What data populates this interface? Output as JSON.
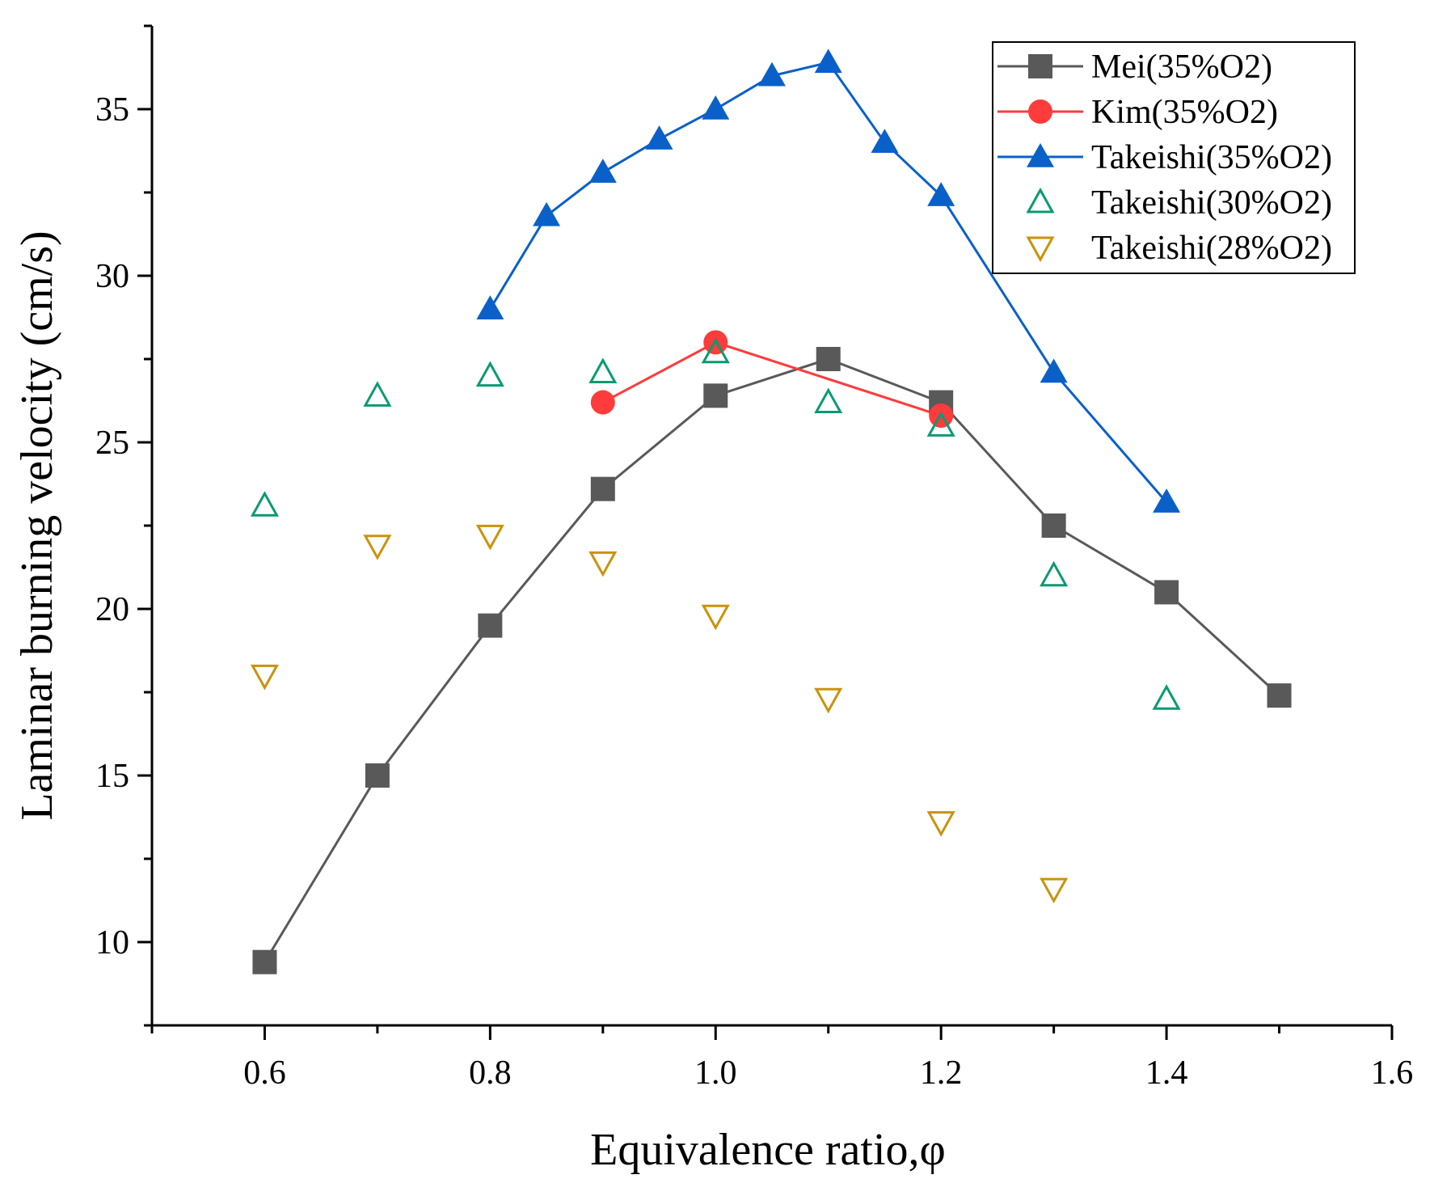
{
  "chart_data": {
    "type": "line",
    "xlabel": "Equivalence ratio,φ",
    "ylabel": "Laminar burning velocity (cm/s)",
    "xlim": [
      0.5,
      1.6
    ],
    "ylim": [
      7.5,
      37.5
    ],
    "xticks": [
      0.6,
      0.8,
      1.0,
      1.2,
      1.4,
      1.6
    ],
    "xtick_labels": [
      "0.6",
      "0.8",
      "1.0",
      "1.2",
      "1.4",
      "1.6"
    ],
    "yticks": [
      10,
      15,
      20,
      25,
      30,
      35
    ],
    "ytick_labels": [
      "10",
      "15",
      "20",
      "25",
      "30",
      "35"
    ],
    "grid": false,
    "legend_position": "top-right",
    "series": [
      {
        "name": "Mei(35%O2)",
        "color": "#595959",
        "marker": "square",
        "line": true,
        "x": [
          0.6,
          0.7,
          0.8,
          0.9,
          1.0,
          1.1,
          1.2,
          1.3,
          1.4,
          1.5
        ],
        "y": [
          9.4,
          15.0,
          19.5,
          23.6,
          26.4,
          27.5,
          26.2,
          22.5,
          20.5,
          17.4
        ]
      },
      {
        "name": "Kim(35%O2)",
        "color": "#ff3b3b",
        "marker": "circle",
        "line": true,
        "x": [
          0.9,
          1.0,
          1.2
        ],
        "y": [
          26.2,
          28.0,
          25.8
        ]
      },
      {
        "name": "Takeishi(35%O2)",
        "color": "#0a60c9",
        "marker": "triangle-up",
        "line": true,
        "x": [
          0.8,
          0.85,
          0.9,
          0.95,
          1.0,
          1.05,
          1.1,
          1.15,
          1.2,
          1.3,
          1.4
        ],
        "y": [
          29.0,
          31.8,
          33.1,
          34.1,
          35.0,
          36.0,
          36.4,
          34.0,
          32.4,
          27.1,
          23.2
        ]
      },
      {
        "name": "Takeishi(30%O2)",
        "color": "#0a9a73",
        "marker": "triangle-up-open",
        "line": false,
        "x": [
          0.6,
          0.7,
          0.8,
          0.9,
          1.0,
          1.1,
          1.2,
          1.3,
          1.4
        ],
        "y": [
          23.1,
          26.4,
          27.0,
          27.1,
          27.7,
          26.2,
          25.5,
          21.0,
          17.3
        ]
      },
      {
        "name": "Takeishi(28%O2)",
        "color": "#c9930c",
        "marker": "triangle-down-open",
        "line": false,
        "x": [
          0.6,
          0.7,
          0.8,
          0.9,
          1.0,
          1.1,
          1.2,
          1.3
        ],
        "y": [
          18.0,
          21.9,
          22.2,
          21.4,
          19.8,
          17.3,
          13.6,
          11.6
        ]
      }
    ]
  }
}
